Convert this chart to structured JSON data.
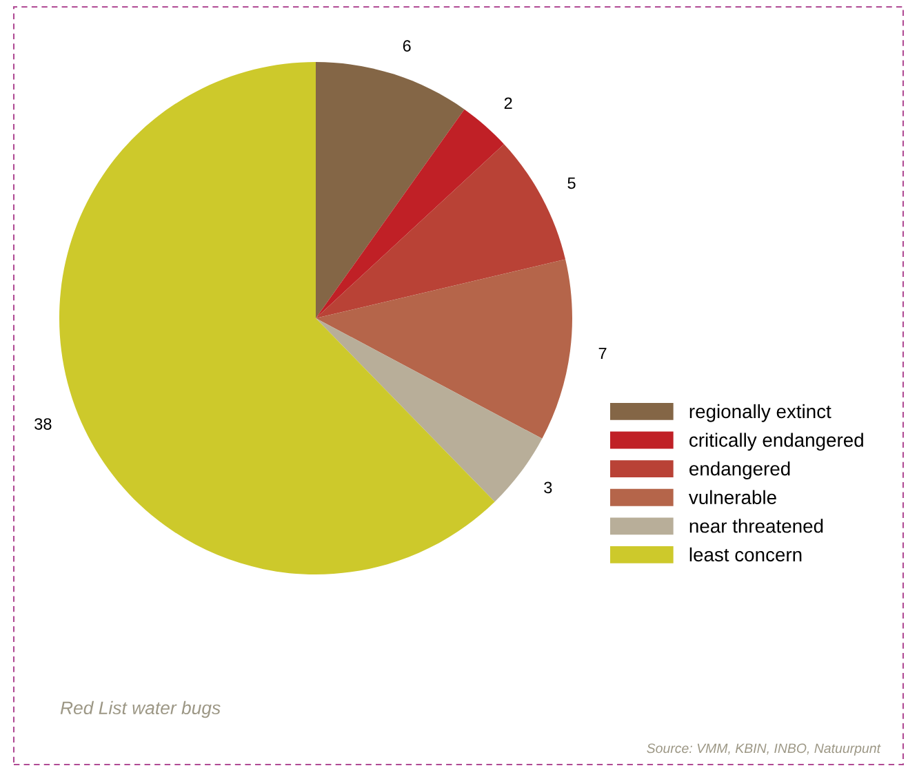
{
  "chart_data": {
    "type": "pie",
    "title": "Red List water bugs",
    "categories": [
      "regionally extinct",
      "critically endangered",
      "endangered",
      "vulnerable",
      "near threatened",
      "least concern"
    ],
    "values": [
      6,
      2,
      5,
      7,
      3,
      38
    ],
    "colors": [
      "#846646",
      "#c02026",
      "#b94236",
      "#b5654a",
      "#b8ae99",
      "#cdc92b"
    ],
    "data_labels": true,
    "legend": "right",
    "annotations": [
      "Source: VMM, KBIN, INBO, Natuurpunt"
    ]
  }
}
